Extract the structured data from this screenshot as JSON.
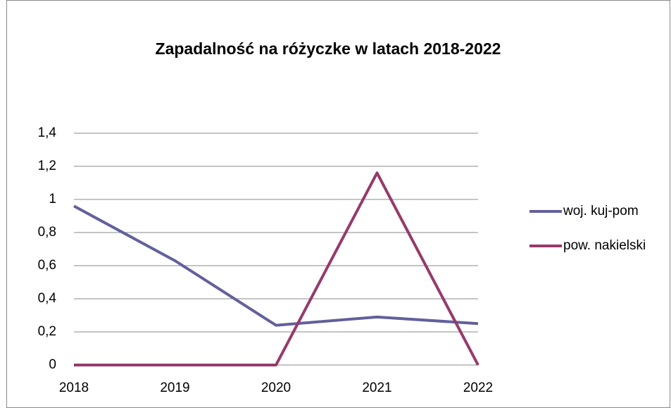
{
  "chart_data": {
    "type": "line",
    "title": "Zapadalność na różyczke w latach 2018-2022",
    "categories": [
      "2018",
      "2019",
      "2020",
      "2021",
      "2022"
    ],
    "series": [
      {
        "name": "woj. kuj-pom",
        "color": "#62609c",
        "values": [
          0.96,
          0.63,
          0.24,
          0.29,
          0.25
        ]
      },
      {
        "name": "pow. nakielski",
        "color": "#953a6b",
        "values": [
          0,
          0,
          0,
          1.16,
          0
        ]
      }
    ],
    "ylim": [
      0,
      1.4
    ],
    "yticks": [
      0,
      {
        "value": 0.2,
        "label": "0,2"
      },
      {
        "value": 0.4,
        "label": "0,4"
      },
      {
        "value": 0.6,
        "label": "0,6"
      },
      {
        "value": 0.8,
        "label": "0,8"
      },
      1,
      {
        "value": 1.2,
        "label": "1,2"
      },
      {
        "value": 1.4,
        "label": "1,4"
      }
    ],
    "grid": true,
    "legend": "right"
  }
}
